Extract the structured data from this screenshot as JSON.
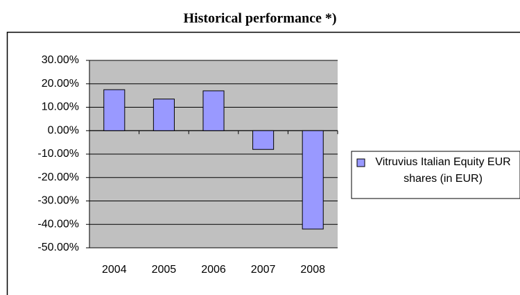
{
  "chart_data": {
    "type": "bar",
    "title": "Historical performance *)",
    "categories": [
      "2004",
      "2005",
      "2006",
      "2007",
      "2008"
    ],
    "series": [
      {
        "name": "Vitruvius Italian Equity EUR shares (in EUR)",
        "color": "#9999ff",
        "values": [
          17.5,
          13.5,
          17,
          -8,
          -42
        ]
      }
    ],
    "ylim": [
      -50,
      30
    ],
    "yticks": [
      {
        "value": -50,
        "label": "-50.00%"
      },
      {
        "value": -40,
        "label": "-40.00%"
      },
      {
        "value": -30,
        "label": "-30.00%"
      },
      {
        "value": -20,
        "label": "-20.00%"
      },
      {
        "value": -10,
        "label": "-10.00%"
      },
      {
        "value": 0,
        "label": "0.00%"
      },
      {
        "value": 10,
        "label": "10.00%"
      },
      {
        "value": 20,
        "label": "20.00%"
      },
      {
        "value": 30,
        "label": "30.00%"
      }
    ],
    "grid": true
  }
}
